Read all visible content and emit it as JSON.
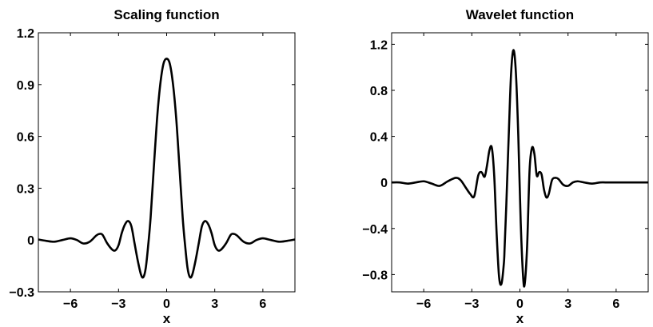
{
  "chart_data": [
    {
      "type": "line",
      "title": "Scaling function",
      "xlabel": "x",
      "ylabel": "",
      "xlim": [
        -8,
        8
      ],
      "ylim": [
        -0.3,
        1.2
      ],
      "xticks": [
        -6,
        -3,
        0,
        3,
        6
      ],
      "xtick_labels": [
        "−6",
        "−3",
        "0",
        "3",
        "6"
      ],
      "yticks": [
        -0.3,
        0,
        0.3,
        0.6,
        0.9,
        1.2
      ],
      "ytick_labels": [
        "−0.3",
        "0",
        "0.3",
        "0.6",
        "0.9",
        "1.2"
      ],
      "grid": false,
      "line_color": "#000000",
      "series": [
        {
          "x": [
            -8,
            -7.5,
            -7,
            -6.5,
            -6,
            -5.6,
            -5.2,
            -4.8,
            -4.4,
            -4.2,
            -4.0,
            -3.7,
            -3.4,
            -3.2,
            -3.0,
            -2.8,
            -2.6,
            -2.4,
            -2.2,
            -2.0,
            -1.8,
            -1.6,
            -1.45,
            -1.3,
            -1.15,
            -1.0,
            -0.8,
            -0.6,
            -0.4,
            -0.2,
            0,
            0.2,
            0.4,
            0.6,
            0.8,
            1.0,
            1.15,
            1.3,
            1.45,
            1.6,
            1.8,
            2.0,
            2.2,
            2.4,
            2.6,
            2.8,
            3.0,
            3.2,
            3.4,
            3.7,
            4.0,
            4.2,
            4.4,
            4.8,
            5.2,
            5.6,
            6.0,
            6.5,
            7.0,
            7.5,
            8.0
          ],
          "y": [
            0.003,
            -0.005,
            -0.01,
            0.0,
            0.01,
            0.0,
            -0.02,
            -0.01,
            0.025,
            0.035,
            0.03,
            -0.02,
            -0.055,
            -0.06,
            -0.03,
            0.04,
            0.09,
            0.11,
            0.08,
            -0.02,
            -0.12,
            -0.2,
            -0.215,
            -0.16,
            -0.03,
            0.13,
            0.42,
            0.7,
            0.9,
            1.02,
            1.05,
            1.02,
            0.9,
            0.7,
            0.42,
            0.13,
            -0.03,
            -0.16,
            -0.215,
            -0.2,
            -0.12,
            -0.02,
            0.08,
            0.11,
            0.09,
            0.04,
            -0.03,
            -0.06,
            -0.055,
            -0.02,
            0.03,
            0.035,
            0.025,
            -0.01,
            -0.02,
            0.0,
            0.01,
            0.0,
            -0.01,
            -0.005,
            0.003
          ]
        }
      ]
    },
    {
      "type": "line",
      "title": "Wavelet function",
      "xlabel": "x",
      "ylabel": "",
      "xlim": [
        -8,
        8
      ],
      "ylim": [
        -0.95,
        1.3
      ],
      "xticks": [
        -6,
        -3,
        0,
        3,
        6
      ],
      "xtick_labels": [
        "−6",
        "−3",
        "0",
        "3",
        "6"
      ],
      "yticks": [
        -0.8,
        -0.4,
        0,
        0.4,
        0.8,
        1.2
      ],
      "ytick_labels": [
        "−0.8",
        "−0.4",
        "0",
        "0.4",
        "0.8",
        "1.2"
      ],
      "grid": false,
      "line_color": "#000000",
      "series": [
        {
          "x": [
            -8,
            -7.5,
            -7,
            -6.5,
            -6,
            -5.5,
            -5.0,
            -4.5,
            -4.0,
            -3.7,
            -3.4,
            -3.1,
            -2.85,
            -2.6,
            -2.4,
            -2.2,
            -2.05,
            -1.9,
            -1.75,
            -1.6,
            -1.45,
            -1.3,
            -1.15,
            -1.0,
            -0.95,
            -0.85,
            -0.7,
            -0.55,
            -0.4,
            -0.25,
            -0.1,
            0.05,
            0.2,
            0.3,
            0.45,
            0.6,
            0.75,
            0.9,
            1.05,
            1.2,
            1.35,
            1.5,
            1.65,
            1.8,
            2.0,
            2.2,
            2.4,
            2.7,
            3.0,
            3.3,
            3.6,
            4.0,
            4.5,
            5.0,
            5.5,
            6.0,
            6.5,
            7.0,
            7.5,
            8.0
          ],
          "y": [
            0.0,
            0.0,
            -0.01,
            0.0,
            0.01,
            -0.01,
            -0.03,
            0.01,
            0.04,
            0.02,
            -0.04,
            -0.1,
            -0.12,
            0.06,
            0.09,
            0.05,
            0.15,
            0.28,
            0.3,
            0.05,
            -0.45,
            -0.82,
            -0.88,
            -0.7,
            -0.55,
            -0.2,
            0.4,
            0.95,
            1.15,
            0.95,
            0.4,
            -0.35,
            -0.82,
            -0.88,
            -0.55,
            0.1,
            0.3,
            0.25,
            0.06,
            0.09,
            0.07,
            -0.06,
            -0.13,
            -0.1,
            0.02,
            0.04,
            0.03,
            -0.02,
            -0.03,
            0.0,
            0.01,
            0.0,
            -0.01,
            0.0,
            0.0,
            0.0,
            0.0,
            0.0,
            0.0,
            0.0
          ]
        }
      ]
    }
  ]
}
